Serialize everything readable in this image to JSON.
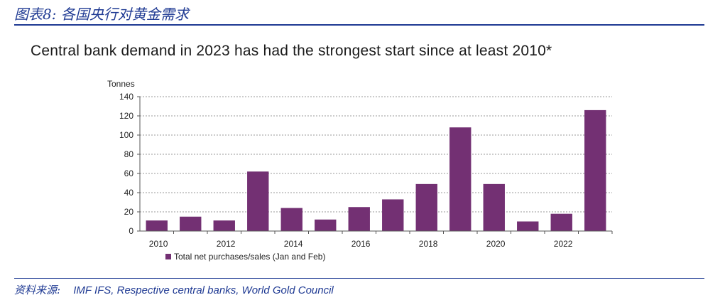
{
  "figure": {
    "title": "图表8:  各国央行对黄金需求",
    "source_label": "资料来源:",
    "source_text": "IMF IFS, Respective central banks, World Gold Council"
  },
  "colors": {
    "bar": "#733073",
    "accent": "#1f3a93",
    "grid": "#9a9a9a",
    "axis": "#555555"
  },
  "chart_data": {
    "type": "bar",
    "title": "Central bank demand in 2023 has had the strongest start since at least 2010*",
    "ylabel": "Tonnes",
    "xlabel": "",
    "ylim": [
      0,
      140
    ],
    "yticks": [
      0,
      20,
      40,
      60,
      80,
      100,
      120,
      140
    ],
    "categories": [
      "2010",
      "2011",
      "2012",
      "2013",
      "2014",
      "2015",
      "2016",
      "2017",
      "2018",
      "2019",
      "2020",
      "2021",
      "2022",
      "2023"
    ],
    "x_tick_labels": [
      "2010",
      "",
      "2012",
      "",
      "2014",
      "",
      "2016",
      "",
      "2018",
      "",
      "2020",
      "",
      "2022",
      ""
    ],
    "values": [
      11,
      15,
      11,
      62,
      24,
      12,
      25,
      33,
      49,
      108,
      49,
      10,
      18,
      126
    ],
    "series": [
      {
        "name": "Total net purchases/sales (Jan and Feb)",
        "values": [
          11,
          15,
          11,
          62,
          24,
          12,
          25,
          33,
          49,
          108,
          49,
          10,
          18,
          126
        ]
      }
    ],
    "grid": true,
    "legend": "bottom-left"
  }
}
